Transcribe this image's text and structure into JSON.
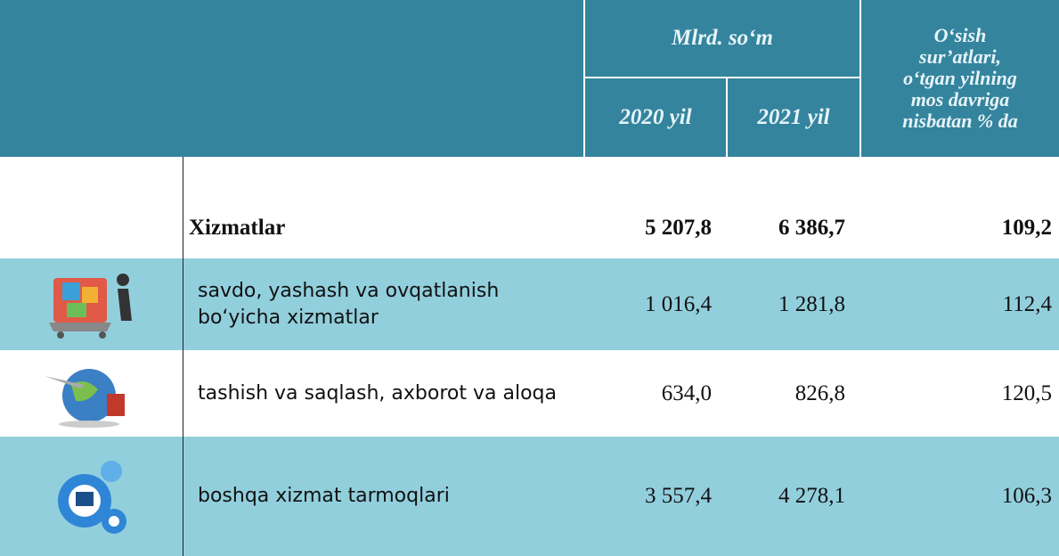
{
  "header": {
    "group": "Mlrd. so‘m",
    "years": [
      "2020 yil",
      "2021 yil"
    ],
    "growth": [
      "O‘sish",
      "sur’atlari,",
      "o‘tgan yilning",
      "mos davriga",
      "nisbatan % da"
    ]
  },
  "table": {
    "rows": [
      {
        "label": "Xizmatlar",
        "v2020": "5 207,8",
        "v2021": "6 386,7",
        "growth": "109,2"
      },
      {
        "label": "savdo, yashash va ovqatlanish bo‘yicha xizmatlar",
        "v2020": "1 016,4",
        "v2021": "1 281,8",
        "growth": "112,4"
      },
      {
        "label": "tashish va saqlash, axborot va aloqa",
        "v2020": "634,0",
        "v2021": "826,8",
        "growth": "120,5"
      },
      {
        "label": "boshqa xizmat tarmoqlari",
        "v2020": "3 557,4",
        "v2021": "4 278,1",
        "growth": "106,3"
      }
    ]
  }
}
